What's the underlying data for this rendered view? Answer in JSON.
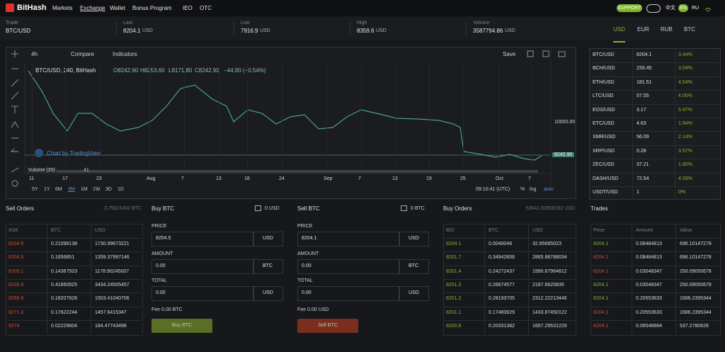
{
  "header": {
    "logo": "BitHash",
    "nav": [
      "Markets",
      "Exchange",
      "Wallet",
      "Bonus Program",
      "IEO",
      "OTC"
    ],
    "support": "SUPPORT",
    "languages": [
      "中文",
      "EN",
      "RU"
    ]
  },
  "ticker": {
    "items": [
      {
        "label": "Trade",
        "value": "BTC/USD"
      },
      {
        "label": "Last",
        "value": "8204.1",
        "unit": "USD"
      },
      {
        "label": "Low",
        "value": "7916.9",
        "unit": "USD"
      },
      {
        "label": "High",
        "value": "8359.6",
        "unit": "USD"
      },
      {
        "label": "Volume",
        "value": "3587794.86",
        "unit": "USD"
      }
    ],
    "currencies": [
      "USD",
      "EUR",
      "RUB",
      "BTC"
    ]
  },
  "chart": {
    "interval": "4h",
    "compare": "Compare",
    "indicators": "Indicators",
    "save": "Save",
    "symbol": "BTC/USD, 240, BitHash",
    "ohlc": [
      "O8242.90",
      "H8253.60",
      "L8171.80",
      "C8242.90"
    ],
    "change": "−44.90 (−0.54%)",
    "attribution": "Chart by TradingView",
    "volume_label": "Volume (20)",
    "volume_value": "41",
    "price_labels": [
      "10000.00",
      "8242.90"
    ],
    "x_labels": [
      "11",
      "17",
      "23",
      "Aug",
      "7",
      "13",
      "18",
      "24",
      "Sep",
      "7",
      "13",
      "19",
      "25",
      "Oct",
      "7"
    ],
    "periods": [
      "5Y",
      "1Y",
      "6M",
      "3M",
      "1M",
      "1W",
      "3D",
      "1D"
    ],
    "time": "09:10:41 (UTC)",
    "scale_options": [
      "%",
      "log",
      "auto"
    ]
  },
  "markets": {
    "rows": [
      [
        "BTC/USD",
        "8204.1",
        "3.44%"
      ],
      [
        "BCH/USD",
        "233.45",
        "3.04%"
      ],
      [
        "ETH/USD",
        "181.51",
        "4.54%"
      ],
      [
        "LTC/USD",
        "57.55",
        "4.00%"
      ],
      [
        "EOS/USD",
        "3.17",
        "5.97%"
      ],
      [
        "ETC/USD",
        "4.63",
        "1.94%"
      ],
      [
        "XMR/USD",
        "56.09",
        "2.14%"
      ],
      [
        "XRP/USD",
        "0.28",
        "3.57%"
      ],
      [
        "ZEC/USD",
        "37.21",
        "1.80%"
      ],
      [
        "DASH/USD",
        "72.54",
        "4.59%"
      ],
      [
        "USDT/USD",
        "1",
        "0%"
      ]
    ]
  },
  "sell_orders": {
    "title": "Sell Orders",
    "total": "3.75021402 BTC",
    "columns": [
      "ASK",
      "BTC",
      "USD"
    ],
    "rows": [
      [
        "8204.5",
        "0.21098138",
        "1730.99673221"
      ],
      [
        "8204.6",
        "0.1656851",
        "1359.37997146"
      ],
      [
        "8205.1",
        "0.14367923",
        "1178.90245007"
      ],
      [
        "8205.9",
        "0.41850925",
        "3434.24505457"
      ],
      [
        "8256.9",
        "0.18207928",
        "1503.41040706"
      ],
      [
        "8271.6",
        "0.17622244",
        "1457.6415347"
      ],
      [
        "8274",
        "0.02229604",
        "184.47743496"
      ]
    ]
  },
  "buy_form": {
    "title": "Buy BTC",
    "balance": "0 USD",
    "fields": [
      {
        "label": "PRICE",
        "value": "8204.5",
        "unit": "USD"
      },
      {
        "label": "AMOUNT",
        "value": "0.00",
        "unit": "BTC"
      },
      {
        "label": "TOTAL",
        "value": "0.00",
        "unit": "USD"
      }
    ],
    "fee": "Fee 0.00 BTC",
    "button": "Buy BTC"
  },
  "sell_form": {
    "title": "Sell BTC",
    "balance": "0 BTC",
    "fields": [
      {
        "label": "PRICE",
        "value": "8204.1",
        "unit": "USD"
      },
      {
        "label": "AMOUNT",
        "value": "0.00",
        "unit": "BTC"
      },
      {
        "label": "TOTAL",
        "value": "0.00",
        "unit": "USD"
      }
    ],
    "fee": "Fee 0.00 USD",
    "button": "Sell BTC"
  },
  "buy_orders": {
    "title": "Buy Orders",
    "total": "53641.62558162 USD",
    "columns": [
      "BID",
      "BTC",
      "USD"
    ],
    "rows": [
      [
        "8204.1",
        "0.0040048",
        "32.85685023"
      ],
      [
        "8201.7",
        "0.34942608",
        "2865.88788034"
      ],
      [
        "8201.4",
        "0.24272437",
        "1990.67964812"
      ],
      [
        "8201.3",
        "0.26674577",
        "2187.6620835"
      ],
      [
        "8201.2",
        "0.28193705",
        "2312.22213446"
      ],
      [
        "8201.1",
        "0.17483929",
        "1433.87450122"
      ],
      [
        "8200.6",
        "0.20331382",
        "1667.29531229"
      ]
    ]
  },
  "trades": {
    "title": "Trades",
    "columns": [
      "Price",
      "Amount",
      "Value"
    ],
    "rows": [
      [
        "8204.1",
        "0.08484813",
        "696.10147278"
      ],
      [
        "8204.1",
        "0.08484813",
        "696.10147278"
      ],
      [
        "8204.1",
        "0.03048347",
        "250.09050678"
      ],
      [
        "8204.1",
        "0.03048347",
        "250.09050678"
      ],
      [
        "8204.1",
        "0.20553633",
        "1686.2395344"
      ],
      [
        "8204.1",
        "0.20553633",
        "1686.2395344"
      ],
      [
        "8204.1",
        "0.06548884",
        "537.2780628"
      ]
    ],
    "row_colors": [
      "#86b431",
      "#d24a33",
      "#d24a33",
      "#86b431",
      "#86b431",
      "#d24a33",
      "#d24a33"
    ]
  }
}
